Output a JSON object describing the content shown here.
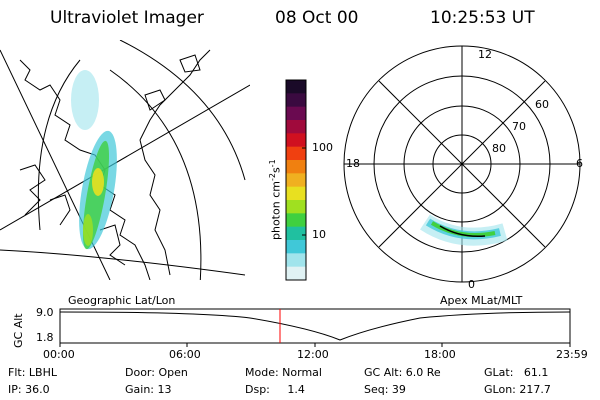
{
  "header": {
    "instrument": "Ultraviolet Imager",
    "date": "08 Oct 00",
    "time": "10:25:53 UT"
  },
  "maps": {
    "geo_label": "Geographic Lat/Lon",
    "apex_label": "Apex MLat/MLT"
  },
  "colorbar": {
    "label_main": "photon cm",
    "label_sup1": "-2",
    "label_s": "s",
    "label_sup2": "-1",
    "ticks": [
      "100",
      "10"
    ],
    "colors": [
      "#1a0a28",
      "#3a0a40",
      "#6a0a50",
      "#a00a3c",
      "#d01020",
      "#f04010",
      "#f08010",
      "#f0b020",
      "#e8e020",
      "#a0e020",
      "#40d040",
      "#20c0a0",
      "#40c8d8",
      "#a0e4ec",
      "#e0f2f4"
    ]
  },
  "polar": {
    "mlt_labels": {
      "top": "12",
      "left": "18",
      "right": "6",
      "bottom": "0"
    },
    "lat_labels": [
      "60",
      "70",
      "80"
    ]
  },
  "altplot": {
    "axis_label": "GC Alt",
    "y_ticks": [
      "9.0",
      "1.8"
    ],
    "x_ticks": [
      "00:00",
      "06:00",
      "12:00",
      "18:00",
      "23:59"
    ],
    "marker_color": "#ff0000"
  },
  "footer": {
    "filter": "Flt: LBHL",
    "ip": "IP: 36.0",
    "door": "Door: Open",
    "gain": "Gain: 13",
    "mode": "Mode: Normal",
    "dsp": "Dsp:     1.4",
    "gcalt": "GC Alt: 6.0 Re",
    "seq": "Seq: 39",
    "glat": "GLat:   61.1",
    "glon": "GLon: 217.7"
  }
}
